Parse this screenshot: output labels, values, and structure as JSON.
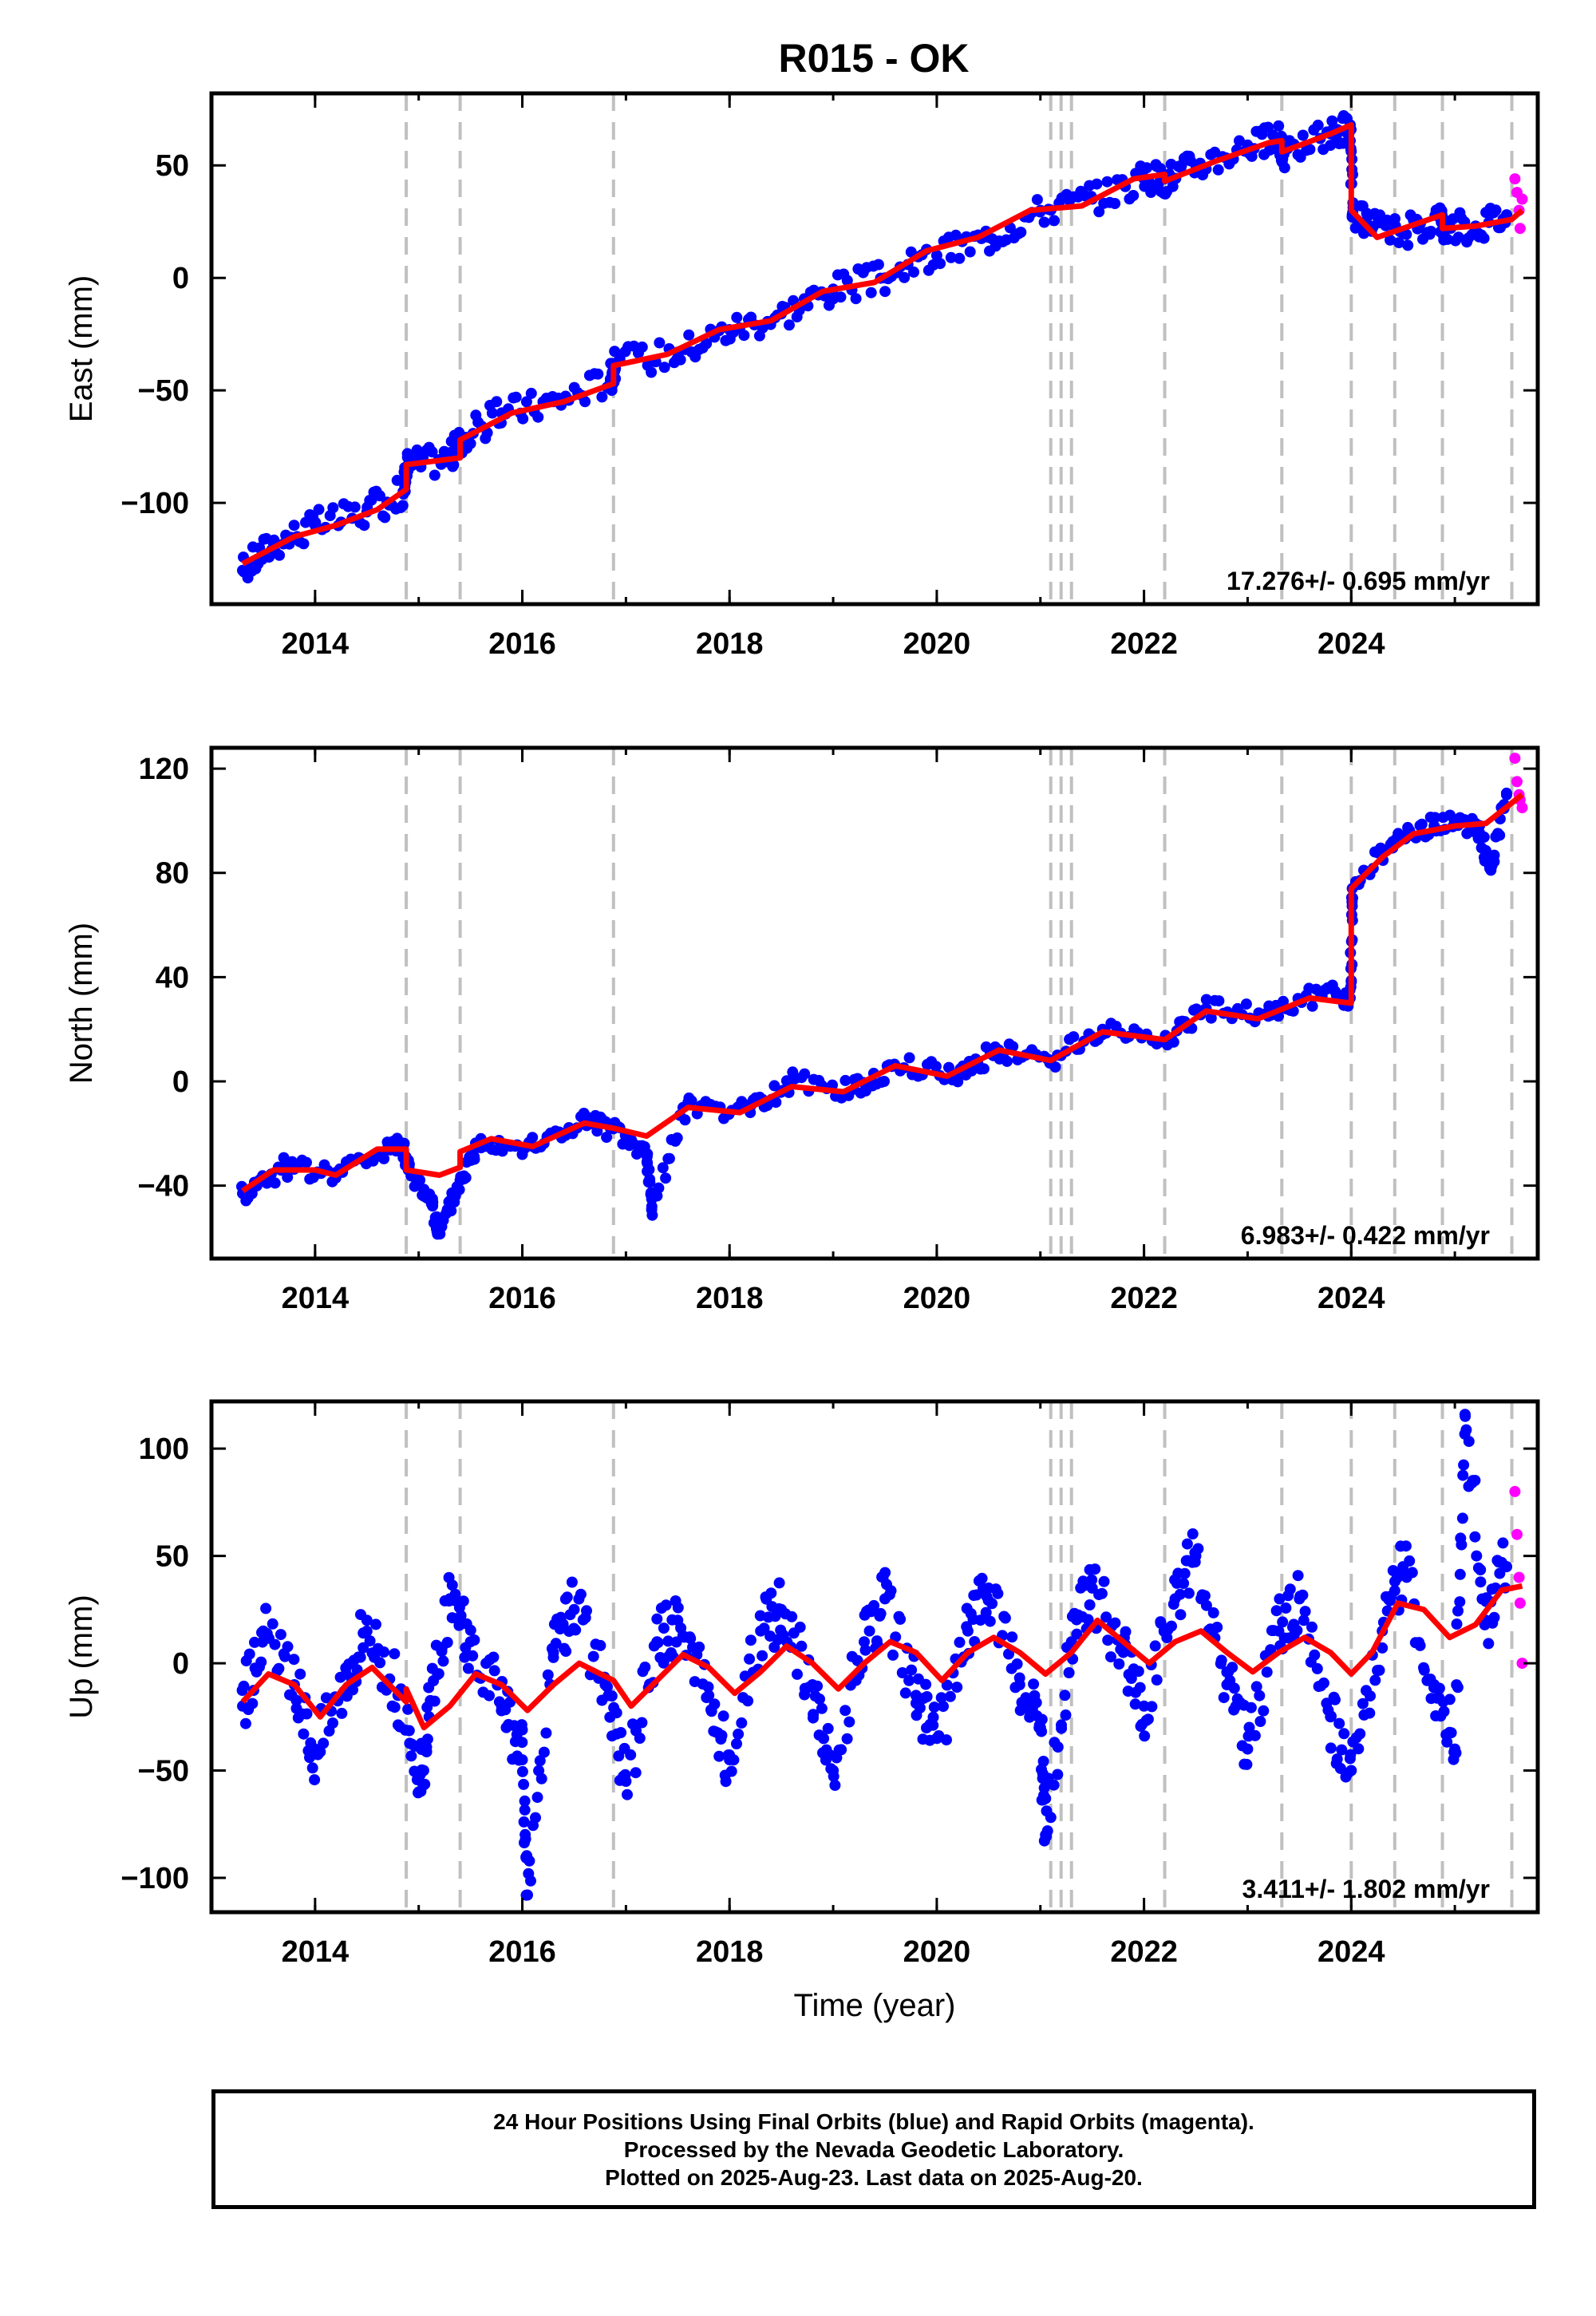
{
  "title": "R015 - OK",
  "colors": {
    "final_orbits": "#0000ff",
    "rapid_orbits": "#ff00ff",
    "model": "#ff0000",
    "event_lines": "#c0c0c0",
    "frame": "#000000"
  },
  "footer": {
    "line1": "24 Hour Positions Using Final Orbits (blue) and Rapid Orbits (magenta).",
    "line2": "Processed by the Nevada Geodetic Laboratory.",
    "line3": "Plotted on 2025-Aug-23. Last data on 2025-Aug-20."
  },
  "chart_data": [
    {
      "type": "scatter",
      "ylabel": "East (mm)",
      "xlabel": "",
      "xlim": [
        2013.0,
        2025.8
      ],
      "ylim": [
        -145,
        82
      ],
      "x_ticks": [
        2014,
        2016,
        2018,
        2020,
        2022,
        2024
      ],
      "y_ticks": [
        -100,
        -50,
        0,
        50
      ],
      "rate_label": "17.276+/- 0.695 mm/yr",
      "event_lines": [
        2014.88,
        2015.4,
        2016.88,
        2021.1,
        2021.2,
        2021.3,
        2022.2,
        2023.33,
        2024.0,
        2024.42,
        2024.88,
        2025.55
      ],
      "series": [
        {
          "name": "Final Orbits",
          "color": "#0000ff",
          "x": [
            2013.3,
            2013.6,
            2014.0,
            2014.5,
            2014.85,
            2014.9,
            2015.3,
            2015.42,
            2015.8,
            2016.3,
            2016.85,
            2016.9,
            2017.5,
            2018.0,
            2018.5,
            2019.0,
            2019.5,
            2020.0,
            2020.5,
            2021.0,
            2021.5,
            2022.0,
            2022.2,
            2022.5,
            2023.0,
            2023.3,
            2023.35,
            2023.8,
            2023.99,
            2024.01,
            2024.2,
            2024.5,
            2024.85,
            2024.9,
            2025.2,
            2025.5
          ],
          "y": [
            -130,
            -118,
            -110,
            -104,
            -95,
            -83,
            -80,
            -72,
            -60,
            -55,
            -45,
            -38,
            -33,
            -23,
            -16,
            -5,
            0,
            10,
            18,
            30,
            35,
            44,
            44,
            50,
            59,
            61,
            55,
            64,
            68,
            28,
            22,
            20,
            27,
            22,
            23,
            28
          ]
        },
        {
          "name": "Rapid Orbits",
          "color": "#ff00ff",
          "x": [
            2025.58,
            2025.6,
            2025.62,
            2025.63,
            2025.65
          ],
          "y": [
            44,
            38,
            30,
            22,
            35
          ]
        }
      ],
      "model": {
        "x": [
          2013.3,
          2013.8,
          2014.2,
          2014.6,
          2014.88,
          2014.88,
          2015.4,
          2015.4,
          2015.9,
          2016.4,
          2016.88,
          2016.88,
          2017.4,
          2017.9,
          2018.4,
          2018.9,
          2019.4,
          2019.9,
          2020.4,
          2020.9,
          2021.4,
          2021.9,
          2022.2,
          2022.2,
          2022.7,
          2023.2,
          2023.33,
          2023.33,
          2023.8,
          2024.0,
          2024.0,
          2024.25,
          2024.5,
          2024.88,
          2024.88,
          2025.2,
          2025.55,
          2025.65
        ],
        "y": [
          -127,
          -115,
          -110,
          -103,
          -94,
          -83,
          -80,
          -72,
          -60,
          -55,
          -47,
          -39,
          -34,
          -23,
          -19,
          -6,
          -2,
          12,
          18,
          30,
          32,
          44,
          46,
          43,
          52,
          60,
          61,
          56,
          64,
          68,
          30,
          18,
          22,
          28,
          22,
          23,
          26,
          30
        ]
      }
    },
    {
      "type": "scatter",
      "ylabel": "North (mm)",
      "xlabel": "",
      "xlim": [
        2013.0,
        2025.8
      ],
      "ylim": [
        -68,
        128
      ],
      "x_ticks": [
        2014,
        2016,
        2018,
        2020,
        2022,
        2024
      ],
      "y_ticks": [
        -40,
        0,
        40,
        80,
        120
      ],
      "rate_label": "6.983+/- 0.422 mm/yr",
      "event_lines": [
        2014.88,
        2015.4,
        2016.88,
        2021.1,
        2021.2,
        2021.3,
        2022.2,
        2023.33,
        2024.0,
        2024.42,
        2024.88,
        2025.55
      ],
      "series": [
        {
          "name": "Final Orbits",
          "color": "#0000ff",
          "x": [
            2013.3,
            2013.7,
            2014.2,
            2014.7,
            2014.85,
            2014.9,
            2015.1,
            2015.2,
            2015.4,
            2015.6,
            2016.1,
            2016.6,
            2016.85,
            2017.2,
            2017.25,
            2017.6,
            2018.2,
            2018.6,
            2019.2,
            2019.6,
            2020.2,
            2020.6,
            2021.1,
            2021.6,
            2022.2,
            2022.6,
            2023.2,
            2023.7,
            2023.99,
            2024.01,
            2024.4,
            2024.8,
            2025.2,
            2025.35,
            2025.5
          ],
          "y": [
            -43,
            -33,
            -35,
            -26,
            -25,
            -34,
            -44,
            -58,
            -38,
            -22,
            -25,
            -15,
            -18,
            -28,
            -48,
            -8,
            -12,
            0,
            -3,
            6,
            3,
            12,
            8,
            20,
            16,
            28,
            25,
            34,
            32,
            74,
            92,
            98,
            99,
            82,
            110
          ]
        },
        {
          "name": "Rapid Orbits",
          "color": "#ff00ff",
          "x": [
            2025.58,
            2025.6,
            2025.62,
            2025.63,
            2025.65
          ],
          "y": [
            124,
            115,
            110,
            108,
            105
          ]
        }
      ],
      "model": {
        "x": [
          2013.3,
          2013.6,
          2014.0,
          2014.2,
          2014.6,
          2014.88,
          2014.88,
          2015.2,
          2015.4,
          2015.4,
          2015.7,
          2016.1,
          2016.6,
          2016.88,
          2017.2,
          2017.6,
          2018.1,
          2018.6,
          2019.1,
          2019.6,
          2020.1,
          2020.6,
          2021.1,
          2021.6,
          2022.2,
          2022.6,
          2023.1,
          2023.6,
          2024.0,
          2024.0,
          2024.3,
          2024.6,
          2025.0,
          2025.3,
          2025.65
        ],
        "y": [
          -42,
          -34,
          -34,
          -36,
          -26,
          -26,
          -34,
          -36,
          -33,
          -27,
          -22,
          -25,
          -16,
          -18,
          -21,
          -10,
          -12,
          -2,
          -4,
          6,
          2,
          12,
          8,
          19,
          16,
          27,
          24,
          32,
          30,
          74,
          86,
          95,
          98,
          99,
          110
        ]
      }
    },
    {
      "type": "scatter",
      "ylabel": "Up (mm)",
      "xlabel": "Time (year)",
      "xlim": [
        2013.0,
        2025.8
      ],
      "ylim": [
        -116,
        122
      ],
      "x_ticks": [
        2014,
        2016,
        2018,
        2020,
        2022,
        2024
      ],
      "y_ticks": [
        -100,
        -50,
        0,
        50,
        100
      ],
      "rate_label": "3.411+/- 1.802 mm/yr",
      "event_lines": [
        2014.88,
        2015.4,
        2016.88,
        2021.1,
        2021.2,
        2021.3,
        2022.2,
        2023.33,
        2024.0,
        2024.42,
        2024.88,
        2025.55
      ],
      "series": [
        {
          "name": "Final Orbits",
          "color": "#0000ff",
          "x": [
            2013.3,
            2013.5,
            2013.8,
            2014.0,
            2014.3,
            2014.5,
            2014.8,
            2015.0,
            2015.1,
            2015.3,
            2015.5,
            2015.8,
            2016.0,
            2016.05,
            2016.3,
            2016.5,
            2016.8,
            2017.0,
            2017.3,
            2017.5,
            2017.8,
            2018.0,
            2018.3,
            2018.5,
            2018.8,
            2019.0,
            2019.3,
            2019.5,
            2019.8,
            2020.0,
            2020.3,
            2020.5,
            2020.8,
            2021.0,
            2021.05,
            2021.3,
            2021.5,
            2021.8,
            2022.0,
            2022.3,
            2022.5,
            2022.8,
            2023.0,
            2023.3,
            2023.5,
            2023.8,
            2024.0,
            2024.3,
            2024.5,
            2024.8,
            2025.0,
            2025.1,
            2025.3,
            2025.5
          ],
          "y": [
            -20,
            15,
            -10,
            -40,
            -5,
            20,
            -15,
            -60,
            -25,
            30,
            10,
            -20,
            -45,
            -108,
            5,
            25,
            -10,
            -55,
            10,
            20,
            -15,
            -45,
            15,
            25,
            -10,
            -50,
            10,
            30,
            -15,
            -35,
            15,
            35,
            -10,
            -30,
            -80,
            10,
            35,
            5,
            -20,
            30,
            50,
            -10,
            -40,
            15,
            30,
            -25,
            -50,
            15,
            45,
            -10,
            -40,
            115,
            20,
            45
          ]
        },
        {
          "name": "Rapid Orbits",
          "color": "#ff00ff",
          "x": [
            2025.58,
            2025.6,
            2025.62,
            2025.63,
            2025.65
          ],
          "y": [
            80,
            60,
            40,
            28,
            0
          ]
        }
      ],
      "model": {
        "x": [
          2013.3,
          2013.55,
          2013.8,
          2014.05,
          2014.3,
          2014.55,
          2014.88,
          2014.88,
          2015.05,
          2015.3,
          2015.55,
          2015.8,
          2016.05,
          2016.3,
          2016.55,
          2016.88,
          2017.05,
          2017.3,
          2017.55,
          2017.8,
          2018.05,
          2018.3,
          2018.55,
          2018.8,
          2019.05,
          2019.3,
          2019.55,
          2019.8,
          2020.05,
          2020.3,
          2020.55,
          2020.8,
          2021.05,
          2021.3,
          2021.55,
          2021.8,
          2022.05,
          2022.3,
          2022.55,
          2022.8,
          2023.05,
          2023.3,
          2023.55,
          2023.8,
          2024.0,
          2024.2,
          2024.45,
          2024.7,
          2024.95,
          2025.2,
          2025.45,
          2025.65
        ],
        "y": [
          -18,
          -5,
          -10,
          -25,
          -10,
          -2,
          -18,
          -12,
          -30,
          -20,
          -5,
          -10,
          -22,
          -10,
          0,
          -8,
          -20,
          -8,
          4,
          -2,
          -14,
          -4,
          8,
          0,
          -12,
          0,
          10,
          5,
          -8,
          5,
          12,
          5,
          -5,
          5,
          20,
          10,
          0,
          10,
          15,
          5,
          -4,
          5,
          12,
          5,
          -5,
          5,
          28,
          25,
          12,
          18,
          34,
          36
        ]
      }
    }
  ]
}
